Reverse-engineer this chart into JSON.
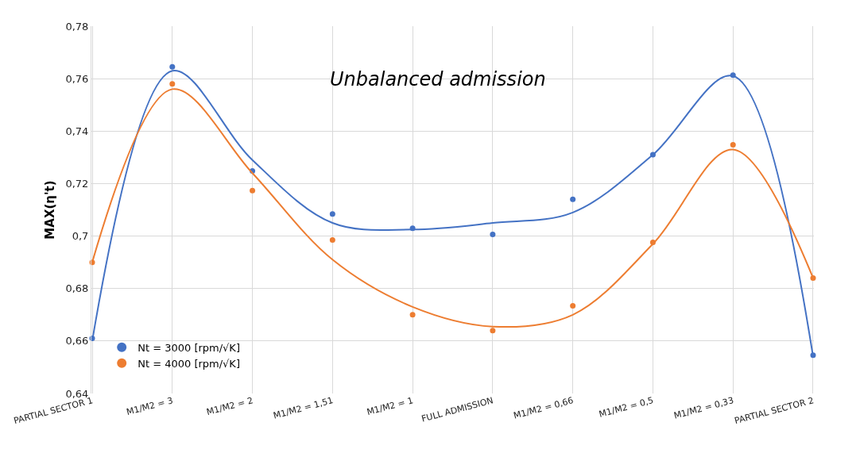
{
  "chart_data": {
    "type": "scatter",
    "annotations": [
      "Unbalanced admission"
    ],
    "ylabel": "MAX(η't)",
    "categories": [
      "PARTIAL SECTOR 1",
      "M1/M2 = 3",
      "M1/M2 = 2",
      "M1/M2 = 1,51",
      "M1/M2 = 1",
      "FULL ADMISSION",
      "M1/M2 = 0,66",
      "M1/M2 = 0,5",
      "M1/M2 = 0,33",
      "PARTIAL SECTOR 2"
    ],
    "ylim": [
      0.64,
      0.78
    ],
    "yticks": [
      {
        "value": 0.64,
        "label": "0,64"
      },
      {
        "value": 0.66,
        "label": "0,66"
      },
      {
        "value": 0.68,
        "label": "0,68"
      },
      {
        "value": 0.7,
        "label": "0,7"
      },
      {
        "value": 0.72,
        "label": "0,72"
      },
      {
        "value": 0.74,
        "label": "0,74"
      },
      {
        "value": 0.76,
        "label": "0,76"
      },
      {
        "value": 0.78,
        "label": "0,78"
      }
    ],
    "grid": true,
    "legend": "bottom left",
    "series": [
      {
        "name": "Nt = 3000 [rpm/√K]",
        "color": "#4472c4",
        "marker": "circle",
        "values": [
          0.661,
          0.7645,
          0.7248,
          0.7084,
          0.703,
          0.7006,
          0.714,
          0.731,
          0.7613,
          0.6546
        ]
      },
      {
        "name": "Nt = 4000 [rpm/√K]",
        "color": "#ed7d31",
        "marker": "circle",
        "values": [
          0.69,
          0.758,
          0.7173,
          0.6985,
          0.67,
          0.664,
          0.6734,
          0.6976,
          0.7348,
          0.684
        ]
      },
      {
        "type": "line",
        "color": "#4472c4",
        "line_style": "solid",
        "marker": "none",
        "values": [
          0.66,
          0.763,
          0.729,
          0.705,
          0.7025,
          0.705,
          0.709,
          0.731,
          0.761,
          0.654
        ]
      },
      {
        "type": "line",
        "color": "#ed7d31",
        "line_style": "solid",
        "marker": "none",
        "values": [
          0.69,
          0.756,
          0.724,
          0.691,
          0.673,
          0.6655,
          0.67,
          0.697,
          0.733,
          0.684
        ]
      }
    ]
  }
}
